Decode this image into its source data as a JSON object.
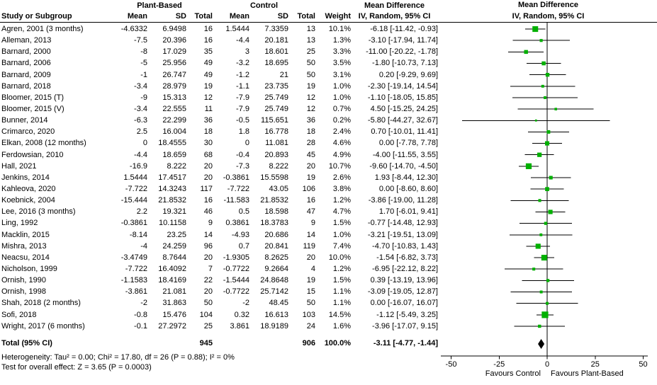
{
  "header": {
    "study_col": "Study or Subgroup",
    "group1": "Plant-Based",
    "group2": "Control",
    "mean": "Mean",
    "sd": "SD",
    "total": "Total",
    "weight": "Weight",
    "md_title": "Mean Difference",
    "md_sub": "IV, Random, 95% CI",
    "plot_title": "Mean Difference",
    "plot_sub": "IV, Random, 95% CI"
  },
  "colors": {
    "marker_green": "#00b000",
    "diamond_black": "#000000",
    "line_black": "#000000",
    "background": "#ffffff"
  },
  "chart_data": {
    "type": "scatter",
    "variant": "forest_plot",
    "title": "Mean Difference",
    "effect_model": "IV, Random, 95% CI",
    "axis": {
      "min": -50,
      "max": 50,
      "ticks": [
        "-50",
        "-25",
        "0",
        "25",
        "50"
      ],
      "tick_values": [
        -50,
        -25,
        0,
        25,
        50
      ],
      "left_label": "Favours Control",
      "right_label": "Favours Plant-Based"
    },
    "studies": [
      {
        "name": "Agren, 2001 (3 months)",
        "pb_mean": "-4.6332",
        "pb_sd": "6.9498",
        "pb_total": "16",
        "c_mean": "1.5444",
        "c_sd": "7.3359",
        "c_total": "13",
        "weight": "10.1%",
        "weight_pct": 10.1,
        "md_text": "-6.18 [-11.42, -0.93]",
        "md": -6.18,
        "lo": -11.42,
        "hi": -0.93
      },
      {
        "name": "Alleman, 2013",
        "pb_mean": "-7.5",
        "pb_sd": "20.396",
        "pb_total": "16",
        "c_mean": "-4.4",
        "c_sd": "20.181",
        "c_total": "13",
        "weight": "1.3%",
        "weight_pct": 1.3,
        "md_text": "-3.10 [-17.94, 11.74]",
        "md": -3.1,
        "lo": -17.94,
        "hi": 11.74
      },
      {
        "name": "Barnard, 2000",
        "pb_mean": "-8",
        "pb_sd": "17.029",
        "pb_total": "35",
        "c_mean": "3",
        "c_sd": "18.601",
        "c_total": "25",
        "weight": "3.3%",
        "weight_pct": 3.3,
        "md_text": "-11.00 [-20.22, -1.78]",
        "md": -11.0,
        "lo": -20.22,
        "hi": -1.78
      },
      {
        "name": "Barnard, 2006",
        "pb_mean": "-5",
        "pb_sd": "25.956",
        "pb_total": "49",
        "c_mean": "-3.2",
        "c_sd": "18.695",
        "c_total": "50",
        "weight": "3.5%",
        "weight_pct": 3.5,
        "md_text": "-1.80 [-10.73, 7.13]",
        "md": -1.8,
        "lo": -10.73,
        "hi": 7.13
      },
      {
        "name": "Barnard, 2009",
        "pb_mean": "-1",
        "pb_sd": "26.747",
        "pb_total": "49",
        "c_mean": "-1.2",
        "c_sd": "21",
        "c_total": "50",
        "weight": "3.1%",
        "weight_pct": 3.1,
        "md_text": "0.20 [-9.29, 9.69]",
        "md": 0.2,
        "lo": -9.29,
        "hi": 9.69
      },
      {
        "name": "Barnard, 2018",
        "pb_mean": "-3.4",
        "pb_sd": "28.979",
        "pb_total": "19",
        "c_mean": "-1.1",
        "c_sd": "23.735",
        "c_total": "19",
        "weight": "1.0%",
        "weight_pct": 1.0,
        "md_text": "-2.30 [-19.14, 14.54]",
        "md": -2.3,
        "lo": -19.14,
        "hi": 14.54
      },
      {
        "name": "Bloomer, 2015 (T)",
        "pb_mean": "-9",
        "pb_sd": "15.313",
        "pb_total": "12",
        "c_mean": "-7.9",
        "c_sd": "25.749",
        "c_total": "12",
        "weight": "1.0%",
        "weight_pct": 1.0,
        "md_text": "-1.10 [-18.05, 15.85]",
        "md": -1.1,
        "lo": -18.05,
        "hi": 15.85
      },
      {
        "name": "Bloomer, 2015 (V)",
        "pb_mean": "-3.4",
        "pb_sd": "22.555",
        "pb_total": "11",
        "c_mean": "-7.9",
        "c_sd": "25.749",
        "c_total": "12",
        "weight": "0.7%",
        "weight_pct": 0.7,
        "md_text": "4.50 [-15.25, 24.25]",
        "md": 4.5,
        "lo": -15.25,
        "hi": 24.25
      },
      {
        "name": "Bunner, 2014",
        "pb_mean": "-6.3",
        "pb_sd": "22.299",
        "pb_total": "36",
        "c_mean": "-0.5",
        "c_sd": "115.651",
        "c_total": "36",
        "weight": "0.2%",
        "weight_pct": 0.2,
        "md_text": "-5.80 [-44.27, 32.67]",
        "md": -5.8,
        "lo": -44.27,
        "hi": 32.67
      },
      {
        "name": "Crimarco, 2020",
        "pb_mean": "2.5",
        "pb_sd": "16.004",
        "pb_total": "18",
        "c_mean": "1.8",
        "c_sd": "16.778",
        "c_total": "18",
        "weight": "2.4%",
        "weight_pct": 2.4,
        "md_text": "0.70 [-10.01, 11.41]",
        "md": 0.7,
        "lo": -10.01,
        "hi": 11.41
      },
      {
        "name": "Elkan, 2008 (12 months)",
        "pb_mean": "0",
        "pb_sd": "18.4555",
        "pb_total": "30",
        "c_mean": "0",
        "c_sd": "11.081",
        "c_total": "28",
        "weight": "4.6%",
        "weight_pct": 4.6,
        "md_text": "0.00 [-7.78, 7.78]",
        "md": 0.0,
        "lo": -7.78,
        "hi": 7.78
      },
      {
        "name": "Ferdowsian, 2010",
        "pb_mean": "-4.4",
        "pb_sd": "18.659",
        "pb_total": "68",
        "c_mean": "-0.4",
        "c_sd": "20.893",
        "c_total": "45",
        "weight": "4.9%",
        "weight_pct": 4.9,
        "md_text": "-4.00 [-11.55, 3.55]",
        "md": -4.0,
        "lo": -11.55,
        "hi": 3.55
      },
      {
        "name": "Hall, 2021",
        "pb_mean": "-16.9",
        "pb_sd": "8.222",
        "pb_total": "20",
        "c_mean": "-7.3",
        "c_sd": "8.222",
        "c_total": "20",
        "weight": "10.7%",
        "weight_pct": 10.7,
        "md_text": "-9.60 [-14.70, -4.50]",
        "md": -9.6,
        "lo": -14.7,
        "hi": -4.5
      },
      {
        "name": "Jenkins, 2014",
        "pb_mean": "1.5444",
        "pb_sd": "17.4517",
        "pb_total": "20",
        "c_mean": "-0.3861",
        "c_sd": "15.5598",
        "c_total": "19",
        "weight": "2.6%",
        "weight_pct": 2.6,
        "md_text": "1.93 [-8.44, 12.30]",
        "md": 1.93,
        "lo": -8.44,
        "hi": 12.3
      },
      {
        "name": "Kahleova, 2020",
        "pb_mean": "-7.722",
        "pb_sd": "14.3243",
        "pb_total": "117",
        "c_mean": "-7.722",
        "c_sd": "43.05",
        "c_total": "106",
        "weight": "3.8%",
        "weight_pct": 3.8,
        "md_text": "0.00 [-8.60, 8.60]",
        "md": 0.0,
        "lo": -8.6,
        "hi": 8.6
      },
      {
        "name": "Koebnick, 2004",
        "pb_mean": "-15.444",
        "pb_sd": "21.8532",
        "pb_total": "16",
        "c_mean": "-11.583",
        "c_sd": "21.8532",
        "c_total": "16",
        "weight": "1.2%",
        "weight_pct": 1.2,
        "md_text": "-3.86 [-19.00, 11.28]",
        "md": -3.86,
        "lo": -19.0,
        "hi": 11.28
      },
      {
        "name": "Lee, 2016 (3 months)",
        "pb_mean": "2.2",
        "pb_sd": "19.321",
        "pb_total": "46",
        "c_mean": "0.5",
        "c_sd": "18.598",
        "c_total": "47",
        "weight": "4.7%",
        "weight_pct": 4.7,
        "md_text": "1.70 [-6.01, 9.41]",
        "md": 1.7,
        "lo": -6.01,
        "hi": 9.41
      },
      {
        "name": "Ling, 1992",
        "pb_mean": "-0.3861",
        "pb_sd": "10.1158",
        "pb_total": "9",
        "c_mean": "0.3861",
        "c_sd": "18.3783",
        "c_total": "9",
        "weight": "1.5%",
        "weight_pct": 1.5,
        "md_text": "-0.77 [-14.48, 12.93]",
        "md": -0.77,
        "lo": -14.48,
        "hi": 12.93
      },
      {
        "name": "Macklin, 2015",
        "pb_mean": "-8.14",
        "pb_sd": "23.25",
        "pb_total": "14",
        "c_mean": "-4.93",
        "c_sd": "20.686",
        "c_total": "14",
        "weight": "1.0%",
        "weight_pct": 1.0,
        "md_text": "-3.21 [-19.51, 13.09]",
        "md": -3.21,
        "lo": -19.51,
        "hi": 13.09
      },
      {
        "name": "Mishra, 2013",
        "pb_mean": "-4",
        "pb_sd": "24.259",
        "pb_total": "96",
        "c_mean": "0.7",
        "c_sd": "20.841",
        "c_total": "119",
        "weight": "7.4%",
        "weight_pct": 7.4,
        "md_text": "-4.70 [-10.83, 1.43]",
        "md": -4.7,
        "lo": -10.83,
        "hi": 1.43
      },
      {
        "name": "Neacsu, 2014",
        "pb_mean": "-3.4749",
        "pb_sd": "8.7644",
        "pb_total": "20",
        "c_mean": "-1.9305",
        "c_sd": "8.2625",
        "c_total": "20",
        "weight": "10.0%",
        "weight_pct": 10.0,
        "md_text": "-1.54 [-6.82, 3.73]",
        "md": -1.54,
        "lo": -6.82,
        "hi": 3.73
      },
      {
        "name": "Nicholson, 1999",
        "pb_mean": "-7.722",
        "pb_sd": "16.4092",
        "pb_total": "7",
        "c_mean": "-0.7722",
        "c_sd": "9.2664",
        "c_total": "4",
        "weight": "1.2%",
        "weight_pct": 1.2,
        "md_text": "-6.95 [-22.12, 8.22]",
        "md": -6.95,
        "lo": -22.12,
        "hi": 8.22
      },
      {
        "name": "Ornish, 1990",
        "pb_mean": "-1.1583",
        "pb_sd": "18.4169",
        "pb_total": "22",
        "c_mean": "-1.5444",
        "c_sd": "24.8648",
        "c_total": "19",
        "weight": "1.5%",
        "weight_pct": 1.5,
        "md_text": "0.39 [-13.19, 13.96]",
        "md": 0.39,
        "lo": -13.19,
        "hi": 13.96
      },
      {
        "name": "Ornish, 1998",
        "pb_mean": "-3.861",
        "pb_sd": "21.081",
        "pb_total": "20",
        "c_mean": "-0.7722",
        "c_sd": "25.7142",
        "c_total": "15",
        "weight": "1.1%",
        "weight_pct": 1.1,
        "md_text": "-3.09 [-19.05, 12.87]",
        "md": -3.09,
        "lo": -19.05,
        "hi": 12.87
      },
      {
        "name": "Shah, 2018 (2 months)",
        "pb_mean": "-2",
        "pb_sd": "31.863",
        "pb_total": "50",
        "c_mean": "-2",
        "c_sd": "48.45",
        "c_total": "50",
        "weight": "1.1%",
        "weight_pct": 1.1,
        "md_text": "0.00 [-16.07, 16.07]",
        "md": 0.0,
        "lo": -16.07,
        "hi": 16.07
      },
      {
        "name": "Sofi, 2018",
        "pb_mean": "-0.8",
        "pb_sd": "15.476",
        "pb_total": "104",
        "c_mean": "0.32",
        "c_sd": "16.613",
        "c_total": "103",
        "weight": "14.5%",
        "weight_pct": 14.5,
        "md_text": "-1.12 [-5.49, 3.25]",
        "md": -1.12,
        "lo": -5.49,
        "hi": 3.25
      },
      {
        "name": "Wright, 2017 (6 months)",
        "pb_mean": "-0.1",
        "pb_sd": "27.2972",
        "pb_total": "25",
        "c_mean": "3.861",
        "c_sd": "18.9189",
        "c_total": "24",
        "weight": "1.6%",
        "weight_pct": 1.6,
        "md_text": "-3.96 [-17.07, 9.15]",
        "md": -3.96,
        "lo": -17.07,
        "hi": 9.15
      }
    ],
    "total": {
      "label": "Total (95% CI)",
      "pb_total": "945",
      "c_total": "906",
      "weight": "100.0%",
      "md_text": "-3.11 [-4.77, -1.44]",
      "md": -3.11,
      "lo": -4.77,
      "hi": -1.44
    },
    "heterogeneity": "Heterogeneity: Tau² = 0.00; Chi² = 17.80, df = 26 (P = 0.88); I² = 0%",
    "overall_effect": "Test for overall effect: Z = 3.65 (P = 0.0003)"
  }
}
